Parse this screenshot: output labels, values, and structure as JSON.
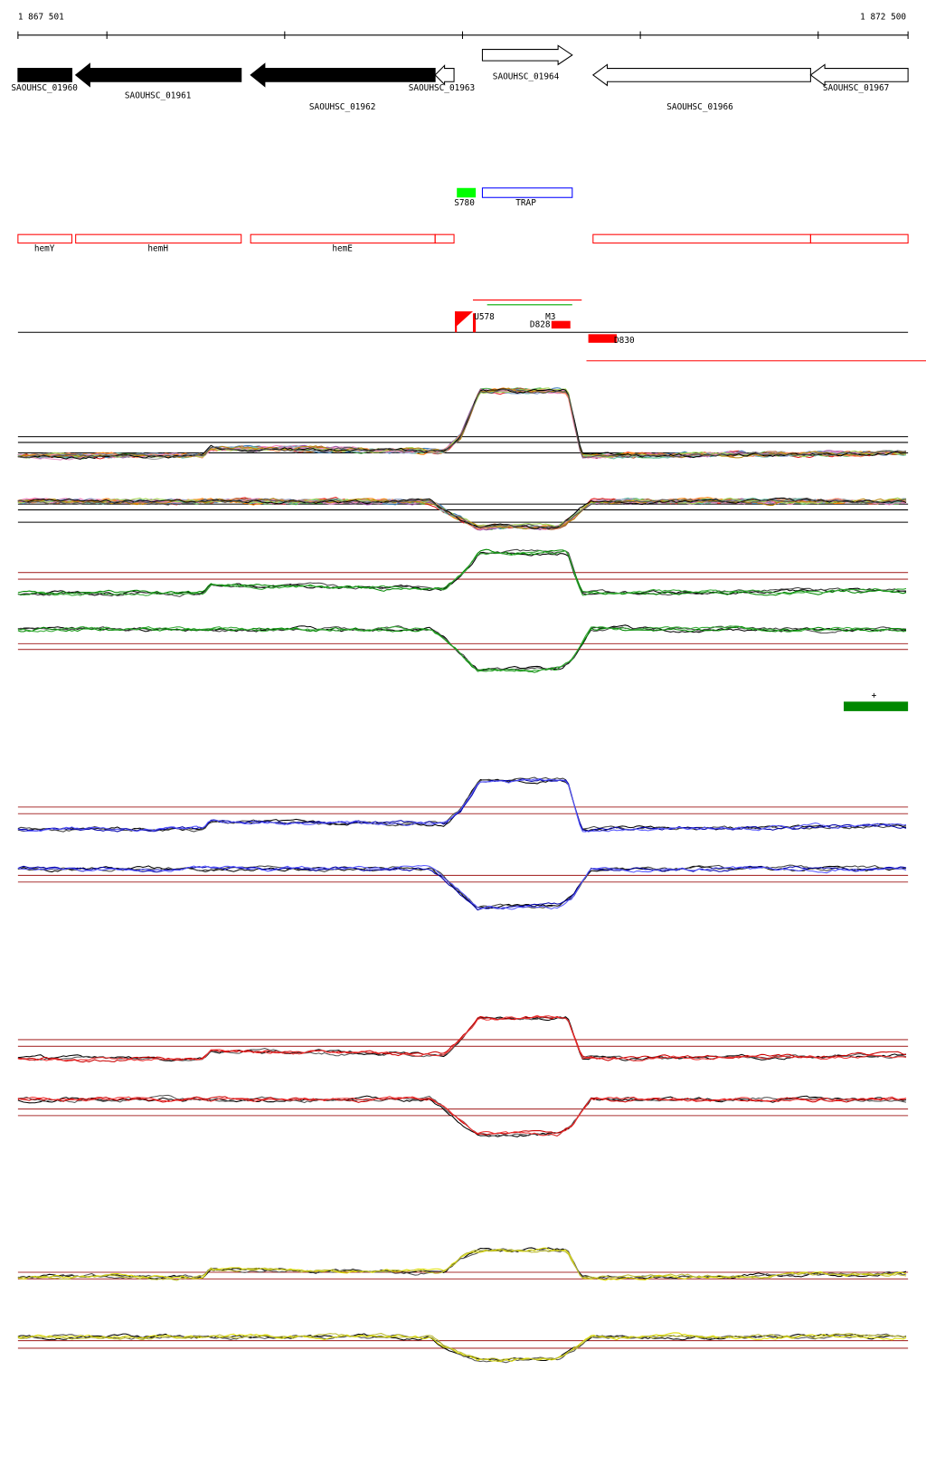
{
  "ruler": {
    "start": "1 867 501",
    "end": "1 872 500"
  },
  "genes": [
    "SAOUHSC_01960",
    "SAOUHSC_01961",
    "SAOUHSC_01962",
    "SAOUHSC_01963",
    "SAOUHSC_01964",
    "SAOUHSC_01966",
    "SAOUHSC_01967"
  ],
  "features": [
    "S780",
    "TRAP"
  ],
  "operons": [
    "hemY",
    "hemH",
    "hemE"
  ],
  "transcripts": [
    "U578",
    "M3",
    "D828",
    "D830"
  ],
  "marker": "+"
}
